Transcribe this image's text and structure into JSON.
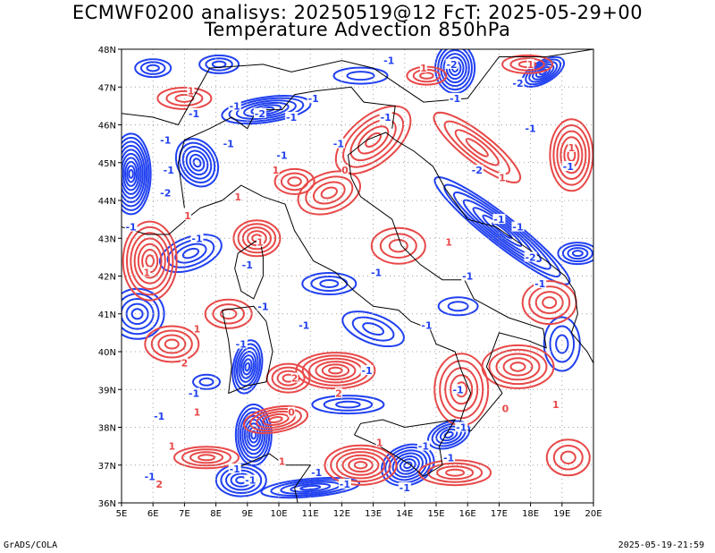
{
  "header": {
    "title_line1": "ECMWF0200 analisys: 20250519@12 FcT: 2025-05-29+00",
    "title_line2": "Temperature Advection 850hPa"
  },
  "footer": {
    "left": "GrADS/COLA",
    "right": "2025-05-19-21:59"
  },
  "map": {
    "lon_range": [
      5,
      20
    ],
    "lat_range": [
      36,
      48
    ],
    "lon_labels": [
      "5E",
      "6E",
      "7E",
      "8E",
      "9E",
      "10E",
      "11E",
      "12E",
      "13E",
      "14E",
      "15E",
      "16E",
      "17E",
      "18E",
      "19E",
      "20E"
    ],
    "lat_labels": [
      "36N",
      "37N",
      "38N",
      "39N",
      "40N",
      "41N",
      "42N",
      "43N",
      "44N",
      "45N",
      "46N",
      "47N",
      "48N"
    ],
    "colors": {
      "positive_contours": "#e84848",
      "negative_contours": "#2040f0",
      "coastline": "#000000",
      "grid": "#a0a0a0"
    },
    "contour_labels": [
      {
        "text": "-1",
        "lon": 10.4,
        "lat": 46.2,
        "sign": "neg"
      },
      {
        "text": "-2",
        "lon": 9.4,
        "lat": 46.3,
        "sign": "neg"
      },
      {
        "text": "1",
        "lon": 7.2,
        "lat": 46.9,
        "sign": "pos"
      },
      {
        "text": "-1",
        "lon": 7.3,
        "lat": 46.3,
        "sign": "neg"
      },
      {
        "text": "-1",
        "lon": 6.4,
        "lat": 45.6,
        "sign": "neg"
      },
      {
        "text": "-1",
        "lon": 6.5,
        "lat": 44.8,
        "sign": "neg"
      },
      {
        "text": "-1",
        "lon": 8.6,
        "lat": 46.5,
        "sign": "neg"
      },
      {
        "text": "-2",
        "lon": 15.5,
        "lat": 47.6,
        "sign": "neg"
      },
      {
        "text": "-1",
        "lon": 13.4,
        "lat": 46.2,
        "sign": "neg"
      },
      {
        "text": "-1",
        "lon": 10.1,
        "lat": 45.2,
        "sign": "neg"
      },
      {
        "text": "-2",
        "lon": 6.4,
        "lat": 44.2,
        "sign": "neg"
      },
      {
        "text": "-1",
        "lon": 8.4,
        "lat": 45.5,
        "sign": "neg"
      },
      {
        "text": "-1",
        "lon": 11.9,
        "lat": 45.5,
        "sign": "neg"
      },
      {
        "text": "-1",
        "lon": 11.1,
        "lat": 46.7,
        "sign": "neg"
      },
      {
        "text": "1",
        "lon": 8.7,
        "lat": 44.1,
        "sign": "pos"
      },
      {
        "text": "1",
        "lon": 7.1,
        "lat": 43.6,
        "sign": "pos"
      },
      {
        "text": "-1",
        "lon": 7.4,
        "lat": 43.0,
        "sign": "neg"
      },
      {
        "text": "1",
        "lon": 9.4,
        "lat": 42.9,
        "sign": "pos"
      },
      {
        "text": "-1",
        "lon": 9.0,
        "lat": 42.3,
        "sign": "neg"
      },
      {
        "text": "1",
        "lon": 9.9,
        "lat": 44.8,
        "sign": "pos"
      },
      {
        "text": "1",
        "lon": 5.8,
        "lat": 42.1,
        "sign": "pos"
      },
      {
        "text": "-1",
        "lon": 5.3,
        "lat": 43.3,
        "sign": "neg"
      },
      {
        "text": "-1",
        "lon": 10.8,
        "lat": 40.7,
        "sign": "neg"
      },
      {
        "text": "-1",
        "lon": 8.8,
        "lat": 40.2,
        "sign": "neg"
      },
      {
        "text": "1",
        "lon": 7.4,
        "lat": 40.6,
        "sign": "pos"
      },
      {
        "text": "-1",
        "lon": 9.5,
        "lat": 41.2,
        "sign": "neg"
      },
      {
        "text": "2",
        "lon": 7.0,
        "lat": 39.7,
        "sign": "pos"
      },
      {
        "text": "-1",
        "lon": 7.3,
        "lat": 38.9,
        "sign": "neg"
      },
      {
        "text": "-1",
        "lon": 6.2,
        "lat": 38.3,
        "sign": "neg"
      },
      {
        "text": "1",
        "lon": 7.4,
        "lat": 38.4,
        "sign": "pos"
      },
      {
        "text": "1",
        "lon": 6.6,
        "lat": 37.5,
        "sign": "pos"
      },
      {
        "text": "-1",
        "lon": 5.9,
        "lat": 36.7,
        "sign": "neg"
      },
      {
        "text": "2",
        "lon": 6.2,
        "lat": 36.5,
        "sign": "pos"
      },
      {
        "text": "-1",
        "lon": 8.6,
        "lat": 36.9,
        "sign": "neg"
      },
      {
        "text": "-1",
        "lon": 9.1,
        "lat": 36.6,
        "sign": "neg"
      },
      {
        "text": "1",
        "lon": 10.1,
        "lat": 37.1,
        "sign": "pos"
      },
      {
        "text": "-1",
        "lon": 11.2,
        "lat": 36.8,
        "sign": "neg"
      },
      {
        "text": "-1",
        "lon": 12.1,
        "lat": 36.5,
        "sign": "neg"
      },
      {
        "text": "2",
        "lon": 10.5,
        "lat": 39.3,
        "sign": "pos"
      },
      {
        "text": "2",
        "lon": 11.9,
        "lat": 38.9,
        "sign": "pos"
      },
      {
        "text": "0",
        "lon": 10.4,
        "lat": 38.4,
        "sign": "pos"
      },
      {
        "text": "-1",
        "lon": 12.8,
        "lat": 39.5,
        "sign": "neg"
      },
      {
        "text": "-1",
        "lon": 14.6,
        "lat": 37.5,
        "sign": "neg"
      },
      {
        "text": "-1",
        "lon": 15.4,
        "lat": 37.2,
        "sign": "neg"
      },
      {
        "text": "1",
        "lon": 13.2,
        "lat": 37.6,
        "sign": "pos"
      },
      {
        "text": "-1",
        "lon": 14.0,
        "lat": 36.4,
        "sign": "neg"
      },
      {
        "text": "-1",
        "lon": 15.8,
        "lat": 38.0,
        "sign": "neg"
      },
      {
        "text": "-1",
        "lon": 15.7,
        "lat": 39.0,
        "sign": "neg"
      },
      {
        "text": "0",
        "lon": 17.2,
        "lat": 38.5,
        "sign": "pos"
      },
      {
        "text": "1",
        "lon": 18.8,
        "lat": 38.6,
        "sign": "pos"
      },
      {
        "text": "-1",
        "lon": 18.3,
        "lat": 41.8,
        "sign": "neg"
      },
      {
        "text": "-1",
        "lon": 17.6,
        "lat": 43.3,
        "sign": "neg"
      },
      {
        "text": "-1",
        "lon": 17.0,
        "lat": 43.5,
        "sign": "neg"
      },
      {
        "text": "-2",
        "lon": 18.0,
        "lat": 42.5,
        "sign": "neg"
      },
      {
        "text": "-1",
        "lon": 18.0,
        "lat": 45.9,
        "sign": "neg"
      },
      {
        "text": "1",
        "lon": 19.3,
        "lat": 45.4,
        "sign": "pos"
      },
      {
        "text": "-1",
        "lon": 19.2,
        "lat": 44.9,
        "sign": "neg"
      },
      {
        "text": "-2",
        "lon": 16.3,
        "lat": 44.8,
        "sign": "neg"
      },
      {
        "text": "1",
        "lon": 17.1,
        "lat": 44.6,
        "sign": "pos"
      },
      {
        "text": "-1",
        "lon": 15.6,
        "lat": 46.7,
        "sign": "neg"
      },
      {
        "text": "-2",
        "lon": 17.6,
        "lat": 47.1,
        "sign": "neg"
      },
      {
        "text": "1",
        "lon": 18.0,
        "lat": 47.6,
        "sign": "pos"
      },
      {
        "text": "-1",
        "lon": 13.5,
        "lat": 47.7,
        "sign": "neg"
      },
      {
        "text": "1",
        "lon": 14.6,
        "lat": 47.5,
        "sign": "pos"
      },
      {
        "text": "0",
        "lon": 12.1,
        "lat": 44.8,
        "sign": "pos"
      },
      {
        "text": "-1",
        "lon": 13.1,
        "lat": 42.1,
        "sign": "neg"
      },
      {
        "text": "-1",
        "lon": 14.7,
        "lat": 40.7,
        "sign": "neg"
      },
      {
        "text": "-1",
        "lon": 16.0,
        "lat": 42.0,
        "sign": "neg"
      },
      {
        "text": "1",
        "lon": 15.4,
        "lat": 42.9,
        "sign": "pos"
      }
    ]
  }
}
